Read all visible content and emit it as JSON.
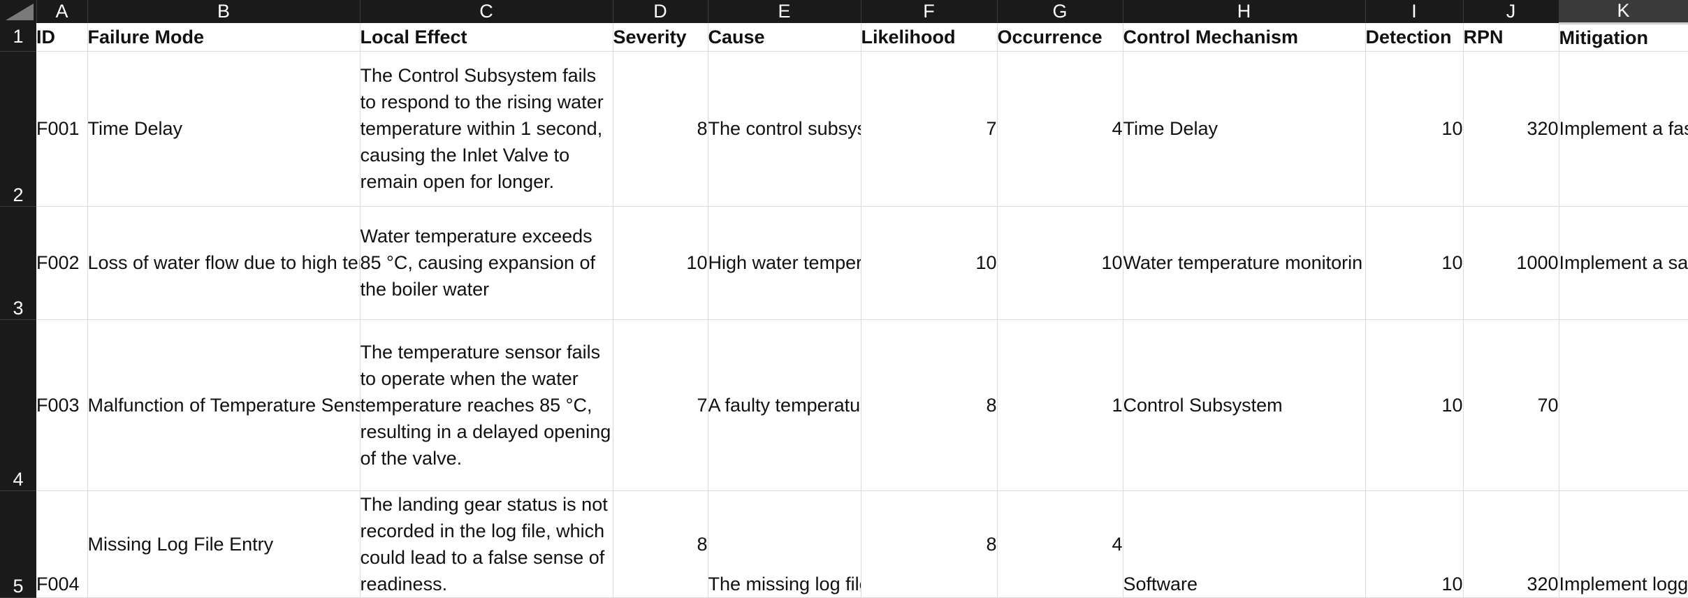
{
  "columns": [
    "A",
    "B",
    "C",
    "D",
    "E",
    "F",
    "G",
    "H",
    "I",
    "J",
    "K"
  ],
  "selected_column": "K",
  "header": {
    "row": "1",
    "cells": [
      "ID",
      "Failure Mode",
      "Local Effect",
      "Severity",
      "Cause",
      "Likelihood",
      "Occurrence",
      "Control Mechanism",
      "Detection",
      "RPN",
      "Mitigation"
    ]
  },
  "rows": [
    {
      "row": "2",
      "cells": [
        "F001",
        "Time Delay",
        "The Control Subsystem fails to respond to the rising water temperature within 1 second, causing the Inlet Valve to remain open for longer.",
        "8",
        "The control subsys",
        "7",
        "4",
        "Time Delay",
        "10",
        "320",
        "Implement a fas"
      ]
    },
    {
      "row": "3",
      "cells": [
        "F002",
        "Loss of water flow due to high tem",
        "Water temperature exceeds 85 °C, causing expansion of the boiler water",
        "10",
        "High water temper",
        "10",
        "10",
        "Water temperature monitorin",
        "10",
        "1000",
        "Implement a saf"
      ]
    },
    {
      "row": "4",
      "cells": [
        "F003",
        "Malfunction of Temperature Sens",
        "The temperature sensor fails to operate when the water temperature reaches 85 °C, resulting in a delayed opening of the valve.",
        "7",
        "A faulty temperatu",
        "8",
        "1",
        "Control Subsystem",
        "10",
        "70",
        ""
      ]
    },
    {
      "row": "5",
      "cells": [
        "F004",
        "Missing Log File Entry",
        "The landing gear status is not recorded in the log file, which could lead to a false sense of readiness.",
        "8",
        "The missing log file",
        "8",
        "4",
        "Software",
        "10",
        "320",
        "Implement logg"
      ]
    }
  ]
}
